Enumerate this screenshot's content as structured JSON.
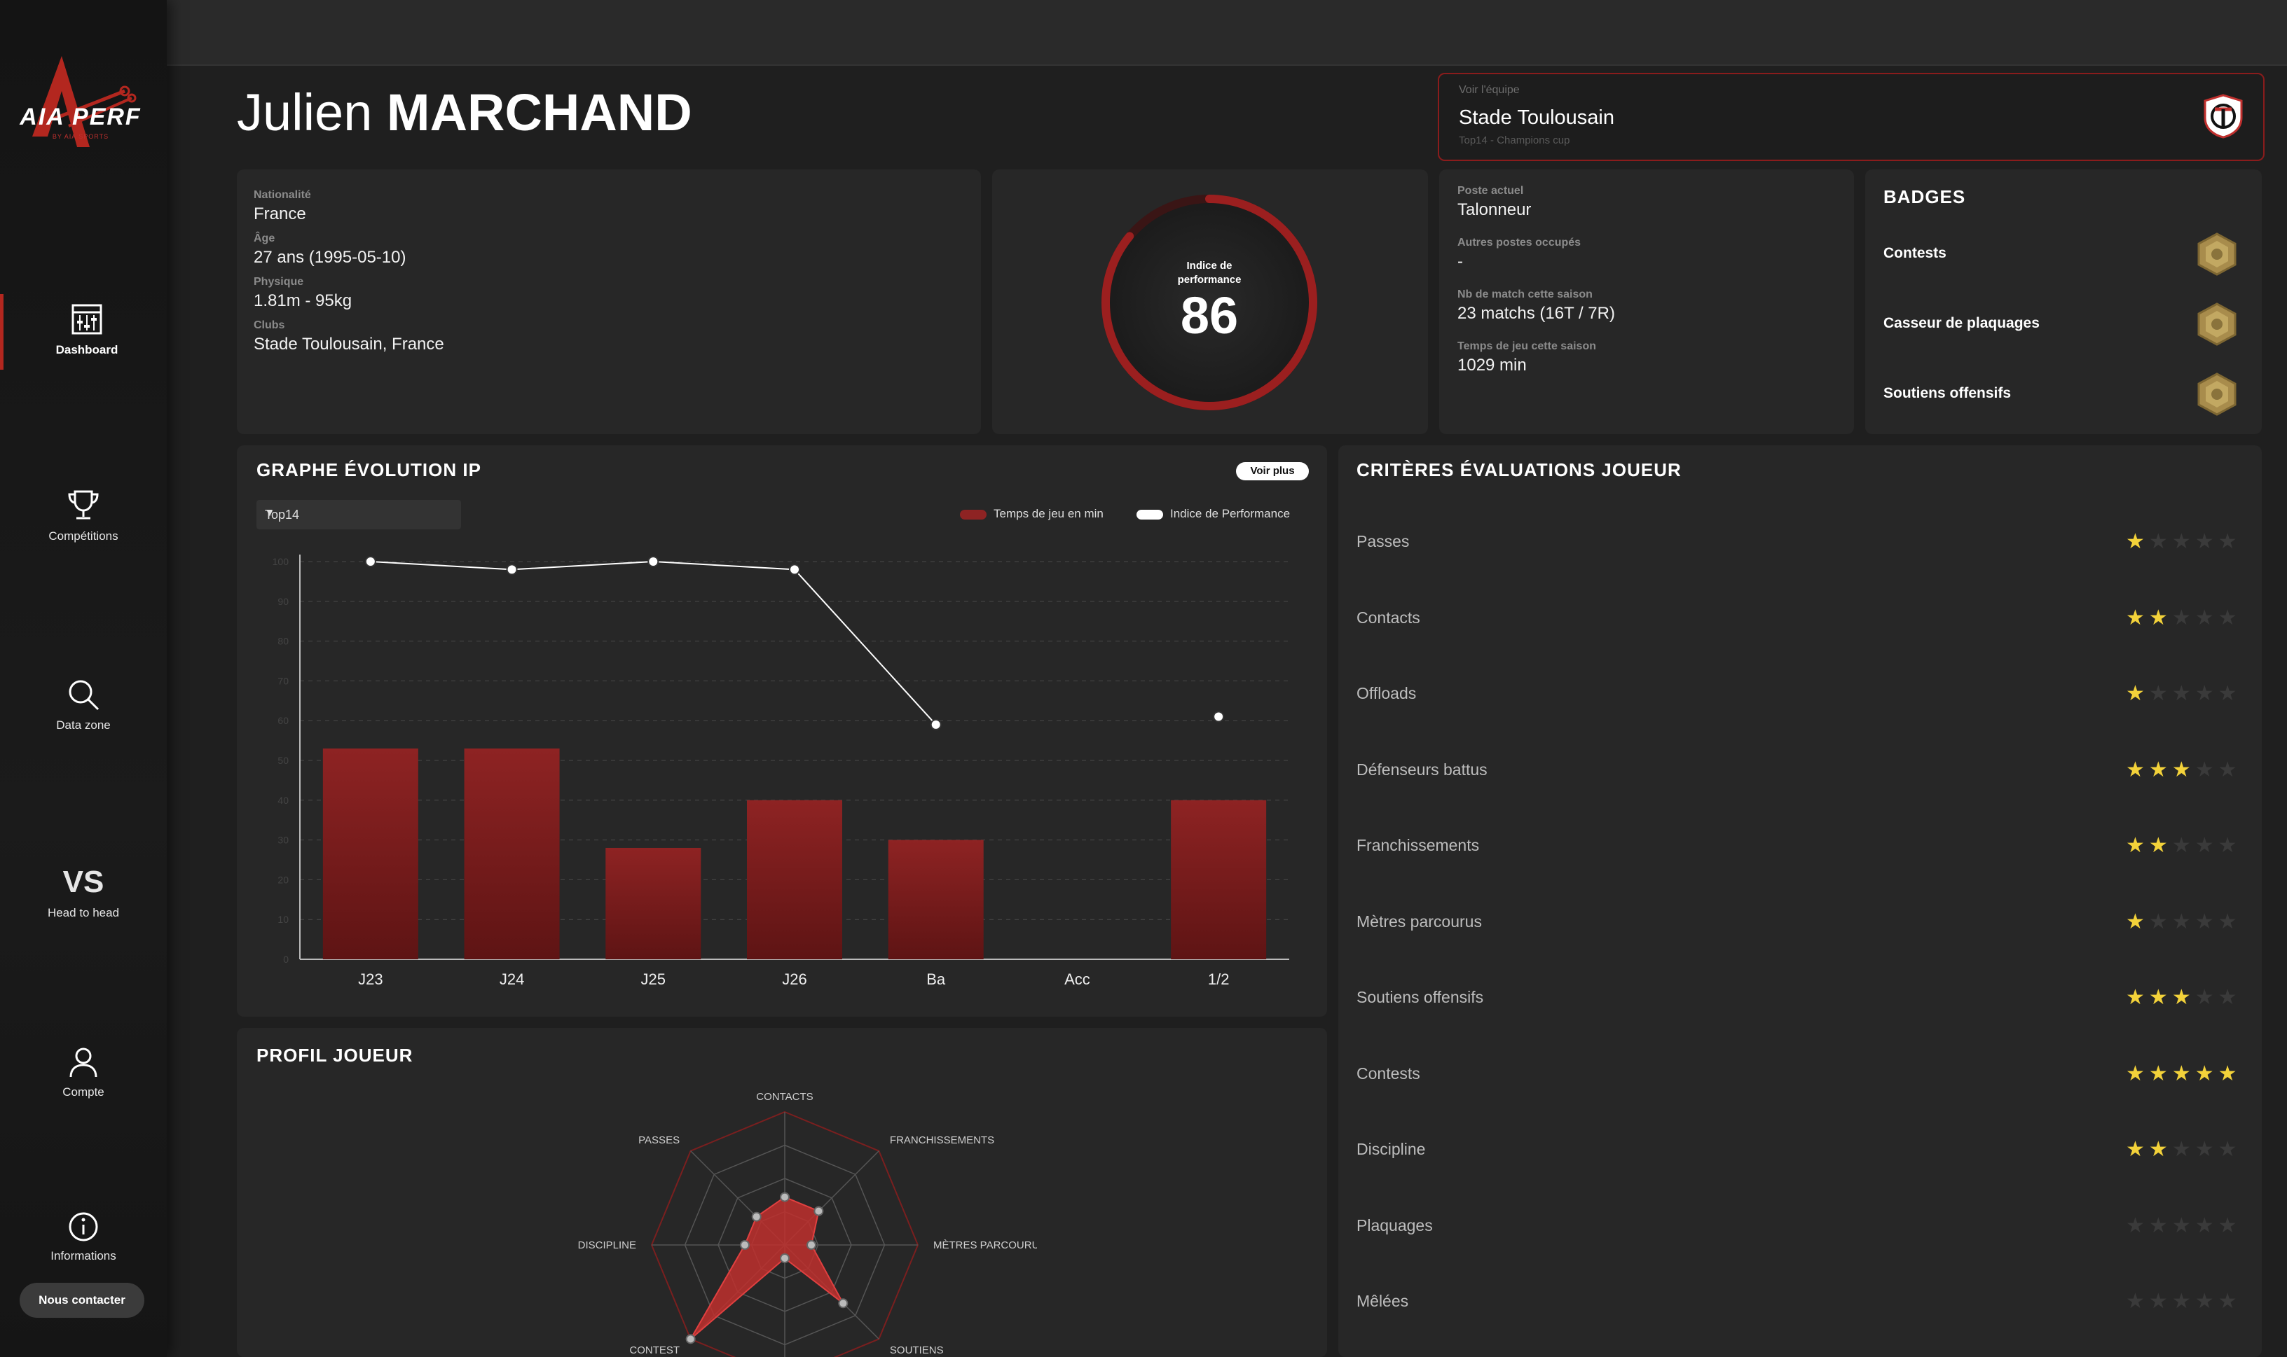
{
  "brand": {
    "name": "AIA PERF",
    "sub": "BY AIA SPORTS"
  },
  "nav": [
    {
      "label": "Dashboard",
      "icon": "dashboard-icon",
      "active": true
    },
    {
      "label": "Compétitions",
      "icon": "trophy-icon",
      "active": false
    },
    {
      "label": "Data zone",
      "icon": "search-icon",
      "active": false
    },
    {
      "label": "Head to head",
      "icon": "vs-icon",
      "glyph": "VS",
      "active": false
    },
    {
      "label": "Compte",
      "icon": "user-icon",
      "active": false
    },
    {
      "label": "Informations",
      "icon": "info-icon",
      "active": false
    }
  ],
  "contact_label": "Nous contacter",
  "player": {
    "first_name": "Julien",
    "last_name": "MARCHAND"
  },
  "team": {
    "link_label": "Voir l'équipe",
    "name": "Stade Toulousain",
    "competitions": "Top14 - Champions cup"
  },
  "identity": [
    {
      "label": "Nationalité",
      "value": "France"
    },
    {
      "label": "Âge",
      "value": "27 ans (1995-05-10)"
    },
    {
      "label": "Physique",
      "value": "1.81m - 95kg"
    },
    {
      "label": "Clubs",
      "value": "Stade Toulousain, France"
    }
  ],
  "performance": {
    "label_line1": "Indice de",
    "label_line2": "performance",
    "value": "86",
    "fraction": 0.86,
    "accent": "#9b1f1f"
  },
  "position": [
    {
      "label": "Poste actuel",
      "value": "Talonneur"
    },
    {
      "label": "Autres postes occupés",
      "value": "-"
    },
    {
      "label": "Nb de match cette saison",
      "value": "23 matchs (16T / 7R)"
    },
    {
      "label": "Temps de jeu cette saison",
      "value": "1029 min"
    }
  ],
  "badges": {
    "title": "BADGES",
    "items": [
      {
        "label": "Contests"
      },
      {
        "label": "Casseur de plaquages"
      },
      {
        "label": "Soutiens offensifs"
      }
    ]
  },
  "evolution": {
    "title": "GRAPHE ÉVOLUTION IP",
    "more_label": "Voir plus",
    "filter_value": "Top14",
    "legend_time": "Temps de jeu en min",
    "legend_ip": "Indice de Performance"
  },
  "chart_data": [
    {
      "type": "bar",
      "categories": [
        "J23",
        "J24",
        "J25",
        "J26",
        "Ba",
        "Acc",
        "1/2"
      ],
      "series": [
        {
          "name": "Temps de jeu en min",
          "type": "bar",
          "color": "#8e2323",
          "values": [
            53,
            53,
            28,
            40,
            30,
            null,
            40
          ]
        },
        {
          "name": "Indice de Performance",
          "type": "line",
          "color": "#ffffff",
          "values": [
            100,
            98,
            100,
            98,
            59,
            null,
            61
          ]
        }
      ],
      "y_ticks": [
        0,
        10,
        20,
        30,
        40,
        50,
        60,
        70,
        80,
        90,
        100
      ],
      "ylim": [
        0,
        100
      ],
      "grid": true,
      "legend_position": "top-right"
    }
  ],
  "profile": {
    "title": "PROFIL JOUEUR",
    "axes": [
      "CONTACTS",
      "FRANCHISSEMENTS",
      "MÈTRES PARCOURUS",
      "SOUTIENS",
      "",
      "CONTEST",
      "DISCIPLINE",
      "PASSES"
    ],
    "values": [
      0.36,
      0.36,
      0.2,
      0.62,
      0.1,
      1.0,
      0.3,
      0.3
    ],
    "color": "#c0302e"
  },
  "criteria": {
    "title": "CRITÈRES ÉVALUATIONS JOUEUR",
    "items": [
      {
        "label": "Passes",
        "stars": 1
      },
      {
        "label": "Contacts",
        "stars": 2
      },
      {
        "label": "Offloads",
        "stars": 1
      },
      {
        "label": "Défenseurs battus",
        "stars": 3
      },
      {
        "label": "Franchissements",
        "stars": 2
      },
      {
        "label": "Mètres parcourus",
        "stars": 1
      },
      {
        "label": "Soutiens offensifs",
        "stars": 3
      },
      {
        "label": "Contests",
        "stars": 5
      },
      {
        "label": "Discipline",
        "stars": 2
      },
      {
        "label": "Plaquages",
        "stars": 0
      },
      {
        "label": "Mêlées",
        "stars": 0
      }
    ],
    "max_stars": 5
  }
}
